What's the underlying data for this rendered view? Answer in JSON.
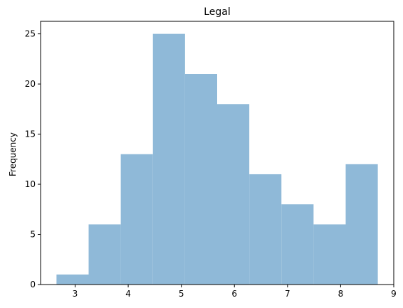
{
  "chart_data": {
    "type": "bar",
    "subtype": "histogram",
    "title": "Legal",
    "xlabel": "",
    "ylabel": "Frequency",
    "bin_edges": [
      2.65,
      3.255,
      3.86,
      4.465,
      5.07,
      5.675,
      6.28,
      6.885,
      7.49,
      8.095,
      8.7
    ],
    "values": [
      1,
      6,
      13,
      25,
      21,
      18,
      11,
      8,
      6,
      12
    ],
    "xlim": [
      2.35,
      9.0
    ],
    "ylim": [
      0,
      26.25
    ],
    "xticks": [
      3,
      4,
      5,
      6,
      7,
      8,
      9
    ],
    "yticks": [
      0,
      5,
      10,
      15,
      20,
      25
    ],
    "bar_color": "#8fb9d8",
    "grid": false,
    "legend": "none"
  }
}
